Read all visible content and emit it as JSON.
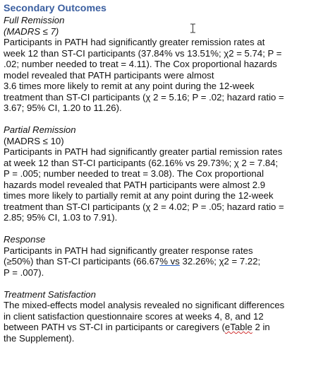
{
  "document": {
    "heading": "Secondary Outcomes",
    "sections": [
      {
        "title": "Full Remission",
        "criterion": "(MADRS ≤ 7)",
        "lines": [
          "Participants in PATH had significantly greater remission rates at",
          "week 12 than ST-CI participants (37.84% vs 13.51%; χ2 = 5.74; P =",
          ".02; number needed to treat = 4.11). The Cox proportional hazards",
          "model revealed that PATH participants were almost",
          "3.6 times more likely to remit at any point during the 12-week",
          "treatment than ST-CI participants (χ 2 = 5.16; P = .02; hazard ratio =",
          "3.67; 95% CI, 1.20 to 11.26)."
        ]
      },
      {
        "title": "Partial Remission",
        "criterion": "(MADRS ≤ 10)",
        "lines": [
          "Participants in PATH had significantly greater partial remission rates",
          "at week 12 than ST-CI participants (62.16% vs 29.73%; χ 2 = 7.84;",
          "P = .005; number needed to treat = 3.08). The Cox proportional",
          "hazards model revealed that PATH participants were almost 2.9",
          "times more likely to partially remit at any point during the 12-week",
          "treatment than ST-CI participants (χ 2 = 4.02; P = .05; hazard ratio =",
          "2.85; 95% CI, 1.03 to 7.91)."
        ]
      },
      {
        "title": "Response",
        "line1": "Participants in PATH had significantly greater response rates",
        "line2_a": "(≥50%) than ST-CI participants (66.67",
        "line2_b": "%  vs",
        "line2_c": " 32.26%; χ2 = 7.22;",
        "line3": "P = .007)."
      },
      {
        "title": "Treatment Satisfaction",
        "line1": "The mixed-effects model analysis revealed no significant differences",
        "line2": "in client satisfaction questionnaire scores at weeks 4, 8, and 12",
        "line3_a": "between PATH vs ST-CI in participants or caregivers (",
        "line3_b": "eTable",
        "line3_c": " 2 in",
        "line4": "the Supplement)."
      }
    ]
  }
}
